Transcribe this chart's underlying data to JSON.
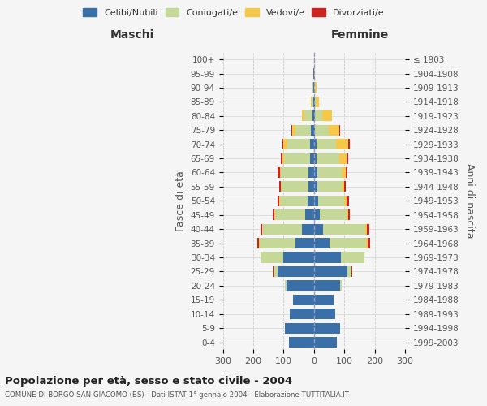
{
  "age_groups": [
    "100+",
    "95-99",
    "90-94",
    "85-89",
    "80-84",
    "75-79",
    "70-74",
    "65-69",
    "60-64",
    "55-59",
    "50-54",
    "45-49",
    "40-44",
    "35-39",
    "30-34",
    "25-29",
    "20-24",
    "15-19",
    "10-14",
    "5-9",
    "0-4"
  ],
  "birth_years": [
    "≤ 1903",
    "1904-1908",
    "1909-1913",
    "1914-1918",
    "1919-1923",
    "1924-1928",
    "1929-1933",
    "1934-1938",
    "1939-1943",
    "1944-1948",
    "1949-1953",
    "1954-1958",
    "1959-1963",
    "1964-1968",
    "1969-1973",
    "1974-1978",
    "1979-1983",
    "1984-1988",
    "1989-1993",
    "1994-1998",
    "1999-2003"
  ],
  "maschi": {
    "celibi": [
      0,
      1,
      2,
      3,
      5,
      10,
      14,
      14,
      18,
      18,
      22,
      28,
      40,
      60,
      100,
      120,
      90,
      70,
      80,
      95,
      82
    ],
    "coniugati": [
      0,
      1,
      3,
      5,
      28,
      52,
      75,
      85,
      90,
      88,
      90,
      100,
      130,
      120,
      75,
      12,
      5,
      0,
      0,
      0,
      0
    ],
    "vedovi": [
      0,
      0,
      0,
      2,
      8,
      10,
      12,
      5,
      4,
      3,
      2,
      2,
      2,
      2,
      0,
      0,
      0,
      0,
      0,
      0,
      0
    ],
    "divorziati": [
      0,
      0,
      0,
      0,
      0,
      2,
      2,
      5,
      7,
      5,
      7,
      7,
      5,
      5,
      0,
      3,
      0,
      0,
      0,
      0,
      0
    ]
  },
  "femmine": {
    "nubili": [
      0,
      0,
      1,
      2,
      3,
      4,
      8,
      8,
      10,
      12,
      15,
      18,
      30,
      52,
      88,
      110,
      85,
      65,
      70,
      85,
      75
    ],
    "coniugate": [
      0,
      1,
      3,
      5,
      25,
      45,
      65,
      75,
      80,
      80,
      85,
      90,
      140,
      120,
      78,
      14,
      7,
      0,
      0,
      0,
      0
    ],
    "vedove": [
      0,
      2,
      5,
      10,
      30,
      35,
      40,
      25,
      14,
      8,
      7,
      5,
      5,
      5,
      0,
      0,
      0,
      0,
      0,
      0,
      0
    ],
    "divorziate": [
      0,
      0,
      0,
      0,
      0,
      2,
      5,
      5,
      7,
      5,
      7,
      5,
      7,
      7,
      0,
      3,
      0,
      0,
      0,
      0,
      0
    ]
  },
  "colors": {
    "celibi": "#3a6fa8",
    "coniugati": "#c5d898",
    "vedovi": "#f5c84a",
    "divorziati": "#cc2222"
  },
  "xlim": 300,
  "title": "Popolazione per età, sesso e stato civile - 2004",
  "subtitle": "COMUNE DI BORGO SAN GIACOMO (BS) - Dati ISTAT 1° gennaio 2004 - Elaborazione TUTTITALIA.IT",
  "ylabel_left": "Fasce di età",
  "ylabel_right": "Anni di nascita",
  "xlabel_left": "Maschi",
  "xlabel_right": "Femmine",
  "bg_color": "#f5f5f5",
  "grid_color": "#cccccc"
}
